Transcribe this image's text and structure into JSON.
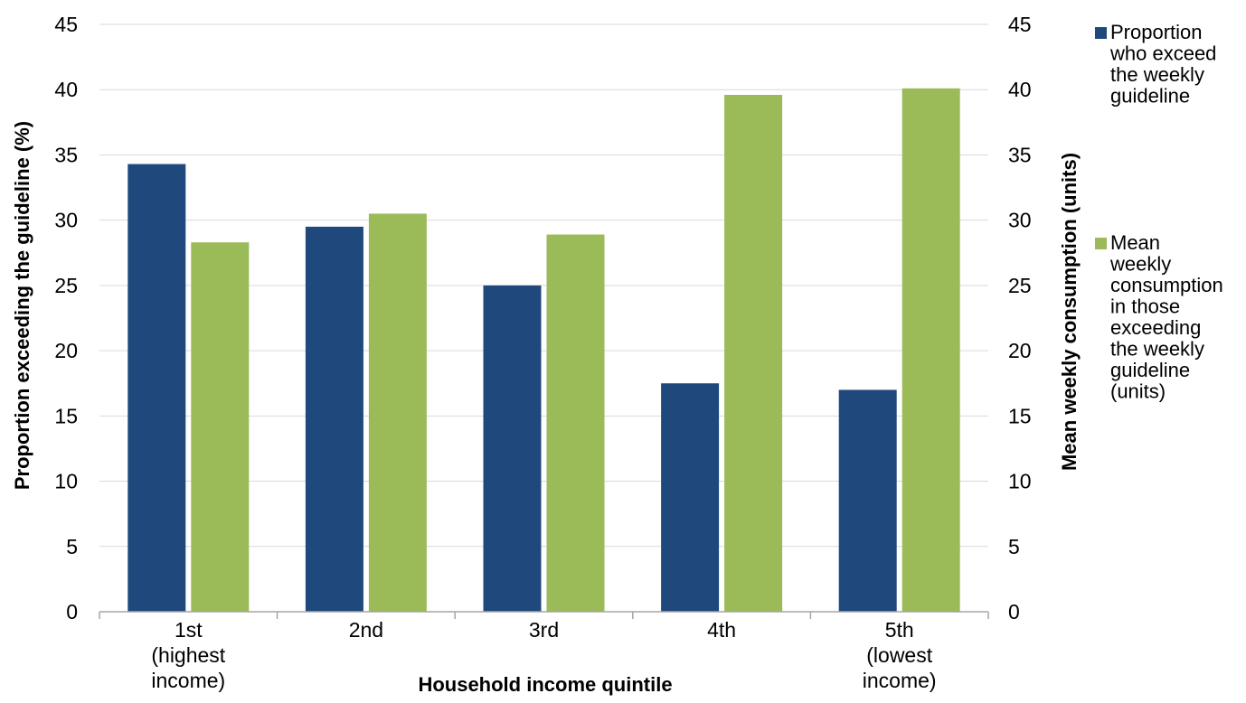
{
  "chart_data": {
    "type": "bar",
    "xlabel": "Household income quintile",
    "ylabel": "Proportion exceeding the guideline (%)",
    "y2label": "Mean weekly consumption (units)",
    "ylim": [
      0,
      45
    ],
    "y2lim": [
      0,
      45
    ],
    "yticks": [
      0,
      5,
      10,
      15,
      20,
      25,
      30,
      35,
      40,
      45
    ],
    "y2ticks": [
      0,
      5,
      10,
      15,
      20,
      25,
      30,
      35,
      40,
      45
    ],
    "grid": true,
    "legend_position": "right",
    "categories": [
      [
        "1st",
        "(highest",
        "income)"
      ],
      [
        "2nd"
      ],
      [
        "3rd"
      ],
      [
        "4th"
      ],
      [
        "5th",
        "(lowest",
        "income)"
      ]
    ],
    "series": [
      {
        "name": [
          "Proportion",
          "who exceed",
          "the weekly",
          "guideline"
        ],
        "axis": "left",
        "color": "#1f497d",
        "values": [
          34.3,
          29.5,
          25.0,
          17.5,
          17.0
        ]
      },
      {
        "name": [
          "Mean",
          "weekly",
          "consumption",
          "in those",
          "exceeding",
          "the weekly",
          "guideline",
          "(units)"
        ],
        "axis": "right",
        "color": "#9bbb59",
        "values": [
          28.3,
          30.5,
          28.9,
          39.6,
          40.1
        ]
      }
    ]
  }
}
